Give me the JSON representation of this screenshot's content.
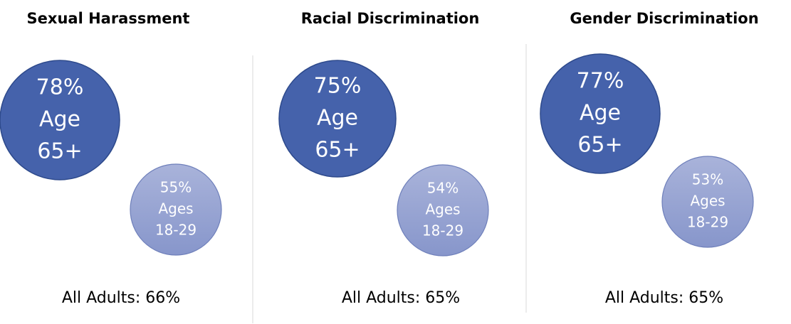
{
  "panels": [
    {
      "title": "Sexual Harassment",
      "older": [
        "78%",
        "Age",
        "65+"
      ],
      "younger": [
        "55%",
        "Ages",
        "18-29"
      ],
      "all_adults": "All Adults: 66%"
    },
    {
      "title": "Racial Discrimination",
      "older": [
        "75%",
        "Age",
        "65+"
      ],
      "younger": [
        "54%",
        "Ages",
        "18-29"
      ],
      "all_adults": "All Adults: 65%"
    },
    {
      "title": "Gender Discrimination",
      "older": [
        "77%",
        "Age",
        "65+"
      ],
      "younger": [
        "53%",
        "Ages",
        "18-29"
      ],
      "all_adults": "All Adults: 65%"
    }
  ]
}
